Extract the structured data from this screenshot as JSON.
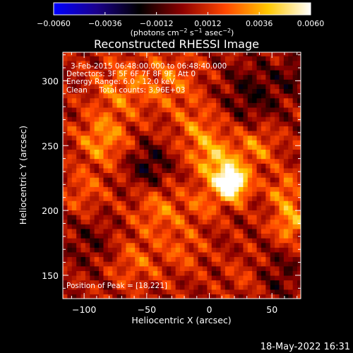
{
  "chart_data": {
    "type": "heatmap",
    "title": "Reconstructed RHESSI Image",
    "xlabel": "Heliocentric X (arcsec)",
    "ylabel": "Heliocentric Y (arcsec)",
    "xlim": [
      -117,
      73
    ],
    "ylim": [
      132,
      322
    ],
    "x_ticks": [
      -100,
      -50,
      0,
      50
    ],
    "x_tick_labels": [
      "−100",
      "−50",
      "0",
      "50"
    ],
    "y_ticks": [
      150,
      200,
      250,
      300
    ],
    "y_tick_labels": [
      "150",
      "200",
      "250",
      "300"
    ],
    "colorbar": {
      "range": [
        -0.006,
        0.006
      ],
      "ticks": [
        -0.006,
        -0.0036,
        -0.0012,
        0.0012,
        0.0036,
        0.006
      ],
      "tick_labels": [
        "−0.0060",
        "−0.0036",
        "−0.0012",
        "0.0012",
        "0.0036",
        "0.0060"
      ],
      "units_label": "(photons cm",
      "units_exp1": "−2",
      "units_mid": " s",
      "units_exp2": "−1",
      "units_mid2": " asec",
      "units_exp3": "−2",
      "units_end": ")",
      "colors": [
        "#0000ff",
        "#1a008c",
        "#000000",
        "#8c0000",
        "#ff4600",
        "#ffc800",
        "#ffffff"
      ]
    },
    "annotations": [
      "3-Feb-2015 06:48:00.000 to 06:48:40.000",
      "Detectors: 3F 5F 6F 7F 8F 9F, Att 0",
      "Energy Range: 6.0 - 12.0 keV",
      "Clean     Total counts: 3.96E+03"
    ],
    "peak_label": "Position of Peak = [18,221]",
    "peak": [
      18,
      221
    ],
    "sources": [
      {
        "x": 18,
        "y": 221,
        "sigma": 9,
        "amp": 0.0068
      },
      {
        "x": 5,
        "y": 238,
        "sigma": 12,
        "amp": 0.003
      },
      {
        "x": -8,
        "y": 262,
        "sigma": 14,
        "amp": 0.002
      },
      {
        "x": 38,
        "y": 250,
        "sigma": 12,
        "amp": 0.0022
      },
      {
        "x": -85,
        "y": 255,
        "sigma": 14,
        "amp": 0.0026
      },
      {
        "x": -70,
        "y": 295,
        "sigma": 16,
        "amp": 0.002
      },
      {
        "x": -30,
        "y": 300,
        "sigma": 16,
        "amp": 0.0018
      },
      {
        "x": 65,
        "y": 190,
        "sigma": 10,
        "amp": 0.003
      },
      {
        "x": 60,
        "y": 215,
        "sigma": 10,
        "amp": 0.0022
      },
      {
        "x": -40,
        "y": 200,
        "sigma": 14,
        "amp": 0.002
      },
      {
        "x": -5,
        "y": 205,
        "sigma": 10,
        "amp": 0.0015
      },
      {
        "x": -60,
        "y": 160,
        "sigma": 14,
        "amp": 0.0016
      },
      {
        "x": -20,
        "y": 170,
        "sigma": 12,
        "amp": 0.0014
      },
      {
        "x": 30,
        "y": 150,
        "sigma": 12,
        "amp": 0.001
      },
      {
        "x": -100,
        "y": 215,
        "sigma": 12,
        "amp": 0.0015
      },
      {
        "x": -48,
        "y": 235,
        "sigma": 12,
        "amp": -0.0022
      },
      {
        "x": 35,
        "y": 290,
        "sigma": 18,
        "amp": -0.0018
      },
      {
        "x": 70,
        "y": 305,
        "sigma": 10,
        "amp": -0.0014
      },
      {
        "x": 55,
        "y": 150,
        "sigma": 14,
        "amp": -0.0014
      },
      {
        "x": -95,
        "y": 175,
        "sigma": 14,
        "amp": -0.0012
      }
    ]
  },
  "timestamp": "18-May-2022 16:31"
}
